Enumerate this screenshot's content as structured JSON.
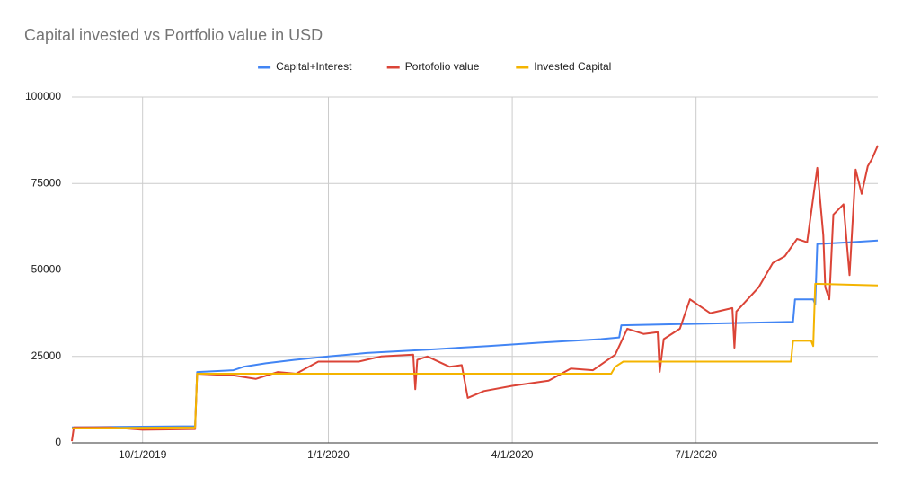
{
  "chart_data": {
    "type": "line",
    "title": "Capital invested vs Portfolio value in USD",
    "xlim": [
      "8/27/2019",
      "9/29/2020"
    ],
    "xticks": [
      "10/1/2019",
      "1/1/2020",
      "4/1/2020",
      "7/1/2020"
    ],
    "ylim": [
      0,
      100000
    ],
    "yticks": [
      0,
      25000,
      50000,
      75000,
      100000
    ],
    "grid": true,
    "legend": "top",
    "series": [
      {
        "name": "Capital+Interest",
        "color": "#4285f4",
        "x": [
          "8/27/2019",
          "10/27/2019",
          "10/28/2019",
          "11/15/2019",
          "11/20/2019",
          "12/1/2019",
          "12/15/2019",
          "1/1/2020",
          "1/20/2020",
          "2/20/2020",
          "3/20/2020",
          "4/15/2020",
          "5/15/2020",
          "5/24/2020",
          "5/25/2020",
          "8/18/2020",
          "8/19/2020",
          "8/28/2020",
          "8/29/2020",
          "8/30/2020",
          "9/15/2020",
          "9/29/2020"
        ],
        "values": [
          4500,
          4800,
          20500,
          21000,
          22000,
          23000,
          24000,
          25000,
          26000,
          27000,
          28000,
          29000,
          30000,
          30500,
          34000,
          35000,
          41500,
          41500,
          40000,
          57500,
          58000,
          58500
        ]
      },
      {
        "name": "Portofolio value",
        "color": "#db4437",
        "x": [
          "8/27/2019",
          "8/28/2019",
          "9/15/2019",
          "10/1/2019",
          "10/27/2019",
          "10/28/2019",
          "11/15/2019",
          "11/26/2019",
          "12/7/2019",
          "12/16/2019",
          "12/27/2019",
          "1/16/2020",
          "1/27/2020",
          "2/12/2020",
          "2/13/2020",
          "2/14/2020",
          "2/19/2020",
          "3/1/2020",
          "3/7/2020",
          "3/10/2020",
          "3/18/2020",
          "4/1/2020",
          "4/19/2020",
          "4/30/2020",
          "5/11/2020",
          "5/22/2020",
          "5/28/2020",
          "6/5/2020",
          "6/12/2020",
          "6/13/2020",
          "6/15/2020",
          "6/23/2020",
          "6/28/2020",
          "7/8/2020",
          "7/19/2020",
          "7/20/2020",
          "7/21/2020",
          "8/1/2020",
          "8/8/2020",
          "8/14/2020",
          "8/20/2020",
          "8/25/2020",
          "8/30/2020",
          "9/2/2020",
          "9/3/2020",
          "9/5/2020",
          "9/7/2020",
          "9/12/2020",
          "9/15/2020",
          "9/18/2020",
          "9/21/2020",
          "9/24/2020",
          "9/26/2020",
          "9/29/2020"
        ],
        "values": [
          500,
          4500,
          4500,
          3800,
          4000,
          20000,
          19500,
          18500,
          20500,
          20000,
          23500,
          23500,
          25000,
          25500,
          15500,
          24000,
          25000,
          22000,
          22500,
          13000,
          15000,
          16500,
          18000,
          21500,
          21000,
          25500,
          33000,
          31500,
          32000,
          20500,
          30000,
          33000,
          41500,
          37500,
          39000,
          27500,
          38000,
          45000,
          52000,
          54000,
          59000,
          58000,
          79500,
          60000,
          45000,
          41500,
          66000,
          69000,
          48500,
          79000,
          72000,
          80000,
          82000,
          86000
        ]
      },
      {
        "name": "Invested Capital",
        "color": "#f4b400",
        "x": [
          "8/27/2019",
          "10/27/2019",
          "10/28/2019",
          "5/20/2020",
          "5/22/2020",
          "5/26/2020",
          "8/17/2020",
          "8/18/2020",
          "8/27/2020",
          "8/28/2020",
          "8/29/2020",
          "9/29/2020"
        ],
        "values": [
          4200,
          4500,
          20000,
          20000,
          22000,
          23500,
          23500,
          29500,
          29500,
          28000,
          46000,
          45500
        ]
      }
    ]
  }
}
